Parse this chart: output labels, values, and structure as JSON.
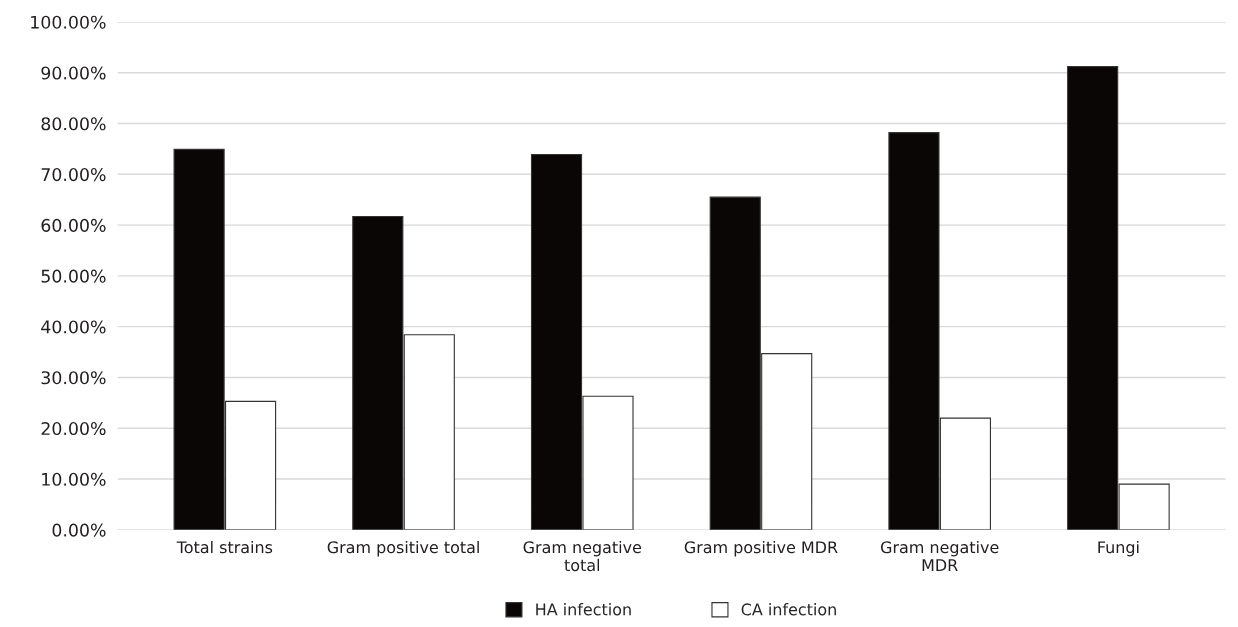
{
  "chart_data": {
    "type": "bar",
    "categories": [
      "Total strains",
      "Gram positive total",
      "Gram negative\ntotal",
      "Gram positive MDR",
      "Gram negative\nMDR",
      "Fungi"
    ],
    "series": [
      {
        "name": "HA infection",
        "color": "#0a0605",
        "values": [
          74.9,
          61.7,
          73.9,
          65.5,
          78.2,
          91.2
        ]
      },
      {
        "name": "CA infection",
        "color": "#ffffff",
        "values": [
          25.3,
          38.4,
          26.3,
          34.7,
          22.0,
          9.0
        ]
      }
    ],
    "ylim": [
      0,
      100
    ],
    "yticks": [
      {
        "value": 0,
        "label": "0.00%"
      },
      {
        "value": 10,
        "label": "10.00%"
      },
      {
        "value": 20,
        "label": "20.00%"
      },
      {
        "value": 30,
        "label": "30.00%"
      },
      {
        "value": 40,
        "label": "40.00%"
      },
      {
        "value": 50,
        "label": "50.00%"
      },
      {
        "value": 60,
        "label": "60.00%"
      },
      {
        "value": 70,
        "label": "70.00%"
      },
      {
        "value": 80,
        "label": "80.00%"
      },
      {
        "value": 90,
        "label": "90.00%"
      },
      {
        "value": 100,
        "label": "100.00%"
      }
    ],
    "grid": "y",
    "legend": "bottom"
  }
}
